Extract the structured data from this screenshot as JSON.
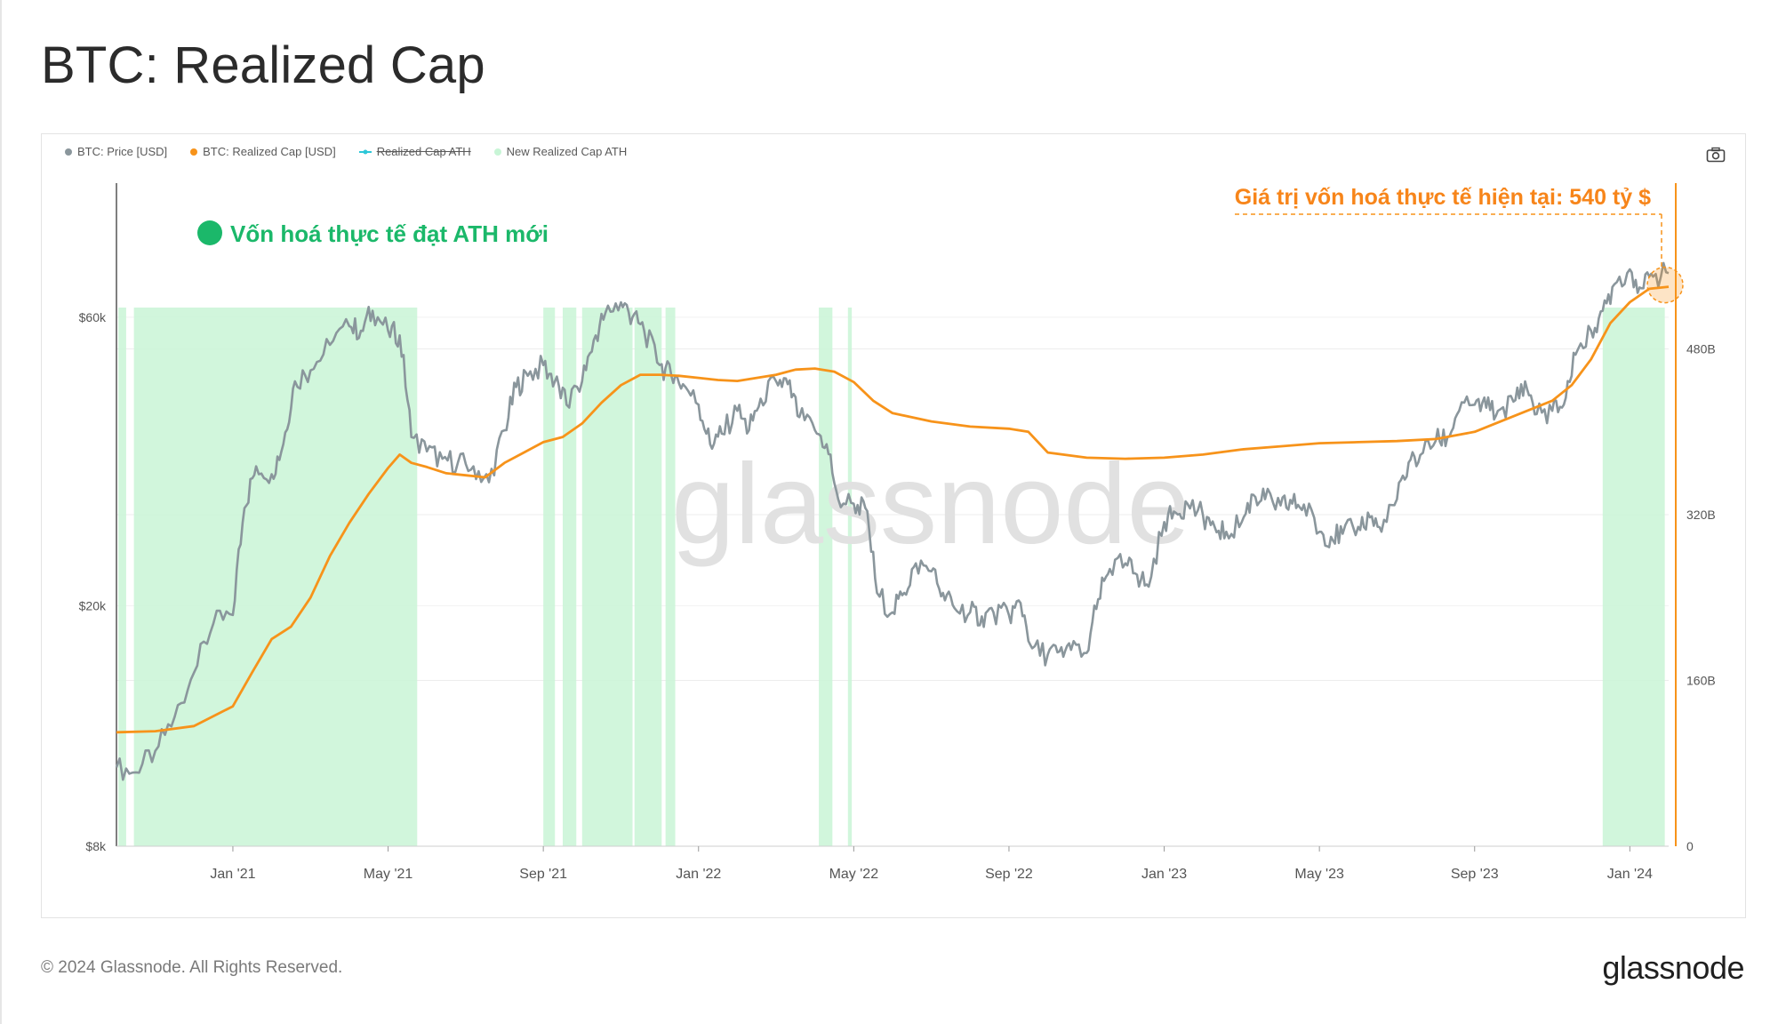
{
  "page": {
    "title": "BTC: Realized Cap",
    "footer_copyright": "© 2024 Glassnode. All Rights Reserved.",
    "footer_logo": "glassnode",
    "watermark": "glassnode"
  },
  "legend": [
    {
      "label": "BTC: Price [USD]",
      "color": "#8a969c",
      "style": "dot"
    },
    {
      "label": "BTC: Realized Cap [USD]",
      "color": "#f7931a",
      "style": "dot"
    },
    {
      "label": "Realized Cap ATH",
      "color": "#2dc7d8",
      "style": "strike"
    },
    {
      "label": "New Realized Cap ATH",
      "color": "#c8f5d6",
      "style": "dot"
    }
  ],
  "annotations": {
    "ath_note": "Vốn hoá thực tế đạt ATH mới",
    "current_note": "Giá trị vốn hoá thực tế hiện tại: 540 tỷ $",
    "ath_color": "#1bb86a",
    "current_color": "#f7851a"
  },
  "chart_data": {
    "type": "line",
    "title": "BTC: Realized Cap",
    "x_range": [
      "2020-10-01",
      "2024-03-31"
    ],
    "x_tick_labels": [
      "Jan '21",
      "May '21",
      "Sep '21",
      "Jan '22",
      "May '22",
      "Sep '22",
      "Jan '23",
      "May '23",
      "Sep '23",
      "Jan '24"
    ],
    "x_tick_positions_months": [
      3,
      7,
      11,
      15,
      19,
      23,
      27,
      31,
      35,
      39
    ],
    "y_left": {
      "label": "Price [USD]",
      "scale": "log",
      "ticks": [
        "$8k",
        "$20k",
        "$60k"
      ],
      "tick_values": [
        8000,
        20000,
        60000
      ],
      "range": [
        8000,
        100000
      ]
    },
    "y_right": {
      "label": "Realized Cap [USD]",
      "scale": "linear",
      "ticks": [
        "0",
        "160B",
        "320B",
        "480B"
      ],
      "tick_values": [
        0,
        160,
        320,
        480
      ],
      "range_billions": [
        0,
        640
      ]
    },
    "series": [
      {
        "name": "BTC: Price [USD]",
        "color": "#8a969c",
        "axis": "left",
        "points": [
          [
            0.0,
            10800
          ],
          [
            0.5,
            10600
          ],
          [
            1.0,
            11500
          ],
          [
            1.5,
            13100
          ],
          [
            2.0,
            15500
          ],
          [
            2.5,
            18700
          ],
          [
            3.0,
            19300
          ],
          [
            3.3,
            29000
          ],
          [
            3.6,
            34000
          ],
          [
            4.0,
            33000
          ],
          [
            4.3,
            37000
          ],
          [
            4.6,
            47000
          ],
          [
            5.0,
            49000
          ],
          [
            5.5,
            54000
          ],
          [
            6.0,
            58000
          ],
          [
            6.3,
            57000
          ],
          [
            6.6,
            61500
          ],
          [
            7.0,
            57000
          ],
          [
            7.3,
            56000
          ],
          [
            7.6,
            38000
          ],
          [
            8.0,
            36000
          ],
          [
            8.4,
            35000
          ],
          [
            8.8,
            34500
          ],
          [
            9.2,
            34000
          ],
          [
            9.6,
            32000
          ],
          [
            10.0,
            39000
          ],
          [
            10.3,
            46000
          ],
          [
            10.6,
            48000
          ],
          [
            11.0,
            50000
          ],
          [
            11.3,
            47000
          ],
          [
            11.6,
            43000
          ],
          [
            12.0,
            47000
          ],
          [
            12.3,
            55000
          ],
          [
            12.6,
            61000
          ],
          [
            13.0,
            63500
          ],
          [
            13.3,
            60000
          ],
          [
            13.6,
            57000
          ],
          [
            14.0,
            50000
          ],
          [
            14.3,
            48000
          ],
          [
            14.6,
            46500
          ],
          [
            15.0,
            43000
          ],
          [
            15.3,
            37000
          ],
          [
            15.6,
            38500
          ],
          [
            16.0,
            42000
          ],
          [
            16.3,
            39000
          ],
          [
            16.6,
            44000
          ],
          [
            17.0,
            47000
          ],
          [
            17.3,
            46500
          ],
          [
            17.6,
            41000
          ],
          [
            18.0,
            39000
          ],
          [
            18.3,
            37000
          ],
          [
            18.6,
            30000
          ],
          [
            19.0,
            29500
          ],
          [
            19.3,
            29000
          ],
          [
            19.6,
            21000
          ],
          [
            20.0,
            19500
          ],
          [
            20.3,
            21000
          ],
          [
            20.6,
            23500
          ],
          [
            21.0,
            22800
          ],
          [
            21.3,
            21000
          ],
          [
            21.6,
            19800
          ],
          [
            22.0,
            19500
          ],
          [
            22.3,
            19200
          ],
          [
            22.6,
            19500
          ],
          [
            23.0,
            19300
          ],
          [
            23.3,
            20200
          ],
          [
            23.6,
            17000
          ],
          [
            24.0,
            16600
          ],
          [
            24.3,
            16800
          ],
          [
            24.6,
            16900
          ],
          [
            25.0,
            16700
          ],
          [
            25.3,
            20500
          ],
          [
            25.6,
            23000
          ],
          [
            26.0,
            23500
          ],
          [
            26.3,
            22500
          ],
          [
            26.6,
            21500
          ],
          [
            27.0,
            27500
          ],
          [
            27.3,
            28500
          ],
          [
            27.6,
            29500
          ],
          [
            28.0,
            28200
          ],
          [
            28.3,
            27000
          ],
          [
            28.6,
            26500
          ],
          [
            29.0,
            27500
          ],
          [
            29.3,
            30500
          ],
          [
            29.6,
            30000
          ],
          [
            30.0,
            29300
          ],
          [
            30.3,
            29500
          ],
          [
            30.6,
            29400
          ],
          [
            31.0,
            26500
          ],
          [
            31.3,
            26000
          ],
          [
            31.6,
            26300
          ],
          [
            32.0,
            27000
          ],
          [
            32.3,
            28000
          ],
          [
            32.6,
            26500
          ],
          [
            33.0,
            30000
          ],
          [
            33.3,
            34500
          ],
          [
            33.6,
            35500
          ],
          [
            34.0,
            37500
          ],
          [
            34.3,
            38000
          ],
          [
            34.6,
            42000
          ],
          [
            35.0,
            43000
          ],
          [
            35.3,
            42500
          ],
          [
            35.6,
            42000
          ],
          [
            36.0,
            43500
          ],
          [
            36.3,
            47000
          ],
          [
            36.6,
            41500
          ],
          [
            37.0,
            42000
          ],
          [
            37.3,
            43000
          ],
          [
            37.6,
            52000
          ],
          [
            38.0,
            57000
          ],
          [
            38.3,
            61500
          ],
          [
            38.6,
            68000
          ],
          [
            39.0,
            72000
          ],
          [
            39.3,
            67000
          ],
          [
            39.6,
            70000
          ],
          [
            40.0,
            71000
          ]
        ]
      },
      {
        "name": "BTC: Realized Cap [USD]",
        "color": "#f7931a",
        "axis": "right",
        "points": [
          [
            0.0,
            110
          ],
          [
            1.0,
            111
          ],
          [
            2.0,
            116
          ],
          [
            3.0,
            135
          ],
          [
            3.5,
            168
          ],
          [
            4.0,
            200
          ],
          [
            4.5,
            212
          ],
          [
            5.0,
            240
          ],
          [
            5.5,
            280
          ],
          [
            6.0,
            312
          ],
          [
            6.5,
            340
          ],
          [
            7.0,
            365
          ],
          [
            7.3,
            378
          ],
          [
            7.6,
            370
          ],
          [
            8.0,
            366
          ],
          [
            8.5,
            360
          ],
          [
            9.0,
            358
          ],
          [
            9.5,
            356
          ],
          [
            10.0,
            370
          ],
          [
            10.5,
            380
          ],
          [
            11.0,
            390
          ],
          [
            11.5,
            395
          ],
          [
            12.0,
            408
          ],
          [
            12.5,
            428
          ],
          [
            13.0,
            445
          ],
          [
            13.5,
            455
          ],
          [
            14.0,
            455
          ],
          [
            14.5,
            454
          ],
          [
            15.0,
            452
          ],
          [
            15.5,
            450
          ],
          [
            16.0,
            449
          ],
          [
            16.5,
            452
          ],
          [
            17.0,
            455
          ],
          [
            17.5,
            460
          ],
          [
            18.0,
            461
          ],
          [
            18.5,
            458
          ],
          [
            19.0,
            448
          ],
          [
            19.5,
            430
          ],
          [
            20.0,
            418
          ],
          [
            21.0,
            410
          ],
          [
            22.0,
            405
          ],
          [
            23.0,
            403
          ],
          [
            23.5,
            400
          ],
          [
            24.0,
            380
          ],
          [
            25.0,
            375
          ],
          [
            26.0,
            374
          ],
          [
            27.0,
            375
          ],
          [
            28.0,
            378
          ],
          [
            29.0,
            383
          ],
          [
            30.0,
            386
          ],
          [
            31.0,
            389
          ],
          [
            32.0,
            390
          ],
          [
            33.0,
            391
          ],
          [
            34.0,
            393
          ],
          [
            35.0,
            400
          ],
          [
            36.0,
            415
          ],
          [
            37.0,
            430
          ],
          [
            37.5,
            445
          ],
          [
            38.0,
            470
          ],
          [
            38.5,
            505
          ],
          [
            39.0,
            525
          ],
          [
            39.5,
            538
          ],
          [
            40.0,
            540
          ]
        ]
      }
    ],
    "ath_regions_months": [
      [
        0.05,
        0.25
      ],
      [
        0.45,
        7.75
      ],
      [
        11.0,
        11.3
      ],
      [
        11.5,
        11.85
      ],
      [
        12.0,
        13.3
      ],
      [
        13.35,
        14.05
      ],
      [
        14.15,
        14.4
      ],
      [
        18.1,
        18.45
      ],
      [
        18.85,
        18.95
      ],
      [
        38.3,
        39.9
      ]
    ],
    "current_value_label": "540 tỷ $"
  }
}
